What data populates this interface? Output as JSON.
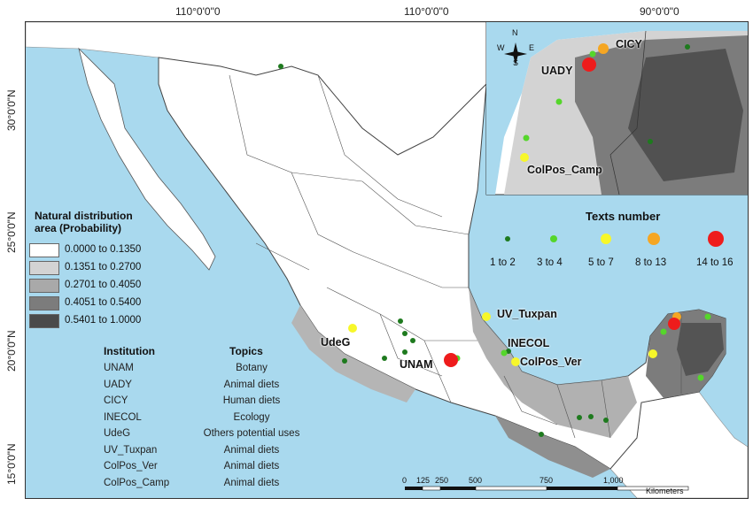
{
  "grid_labels": {
    "top": [
      "110°0'0\"0",
      "110°0'0\"0",
      "90°0'0\"0"
    ],
    "left": [
      "30°0'0\"N",
      "25°0'0\"N",
      "20°0'0\"N",
      "15°0'0\"N"
    ]
  },
  "legend": {
    "title_line1": "Natural distribution",
    "title_line2": "area (Probability)",
    "classes": [
      {
        "label": "0.0000 to 0.1350",
        "color": "#ffffff"
      },
      {
        "label": "0.1351 to 0.2700",
        "color": "#d3d3d3"
      },
      {
        "label": "0.2701 to 0.4050",
        "color": "#a9a9a9"
      },
      {
        "label": "0.4051 to 0.5400",
        "color": "#7c7c7c"
      },
      {
        "label": "0.5401 to 1.0000",
        "color": "#4a4a4a"
      }
    ]
  },
  "institution_table": {
    "header_institution": "Institution",
    "header_topics": "Topics",
    "rows": [
      {
        "institution": "UNAM",
        "topic": "Botany"
      },
      {
        "institution": "UADY",
        "topic": "Animal diets"
      },
      {
        "institution": "CICY",
        "topic": "Human diets"
      },
      {
        "institution": "INECOL",
        "topic": "Ecology"
      },
      {
        "institution": "UdeG",
        "topic": "Others potential uses"
      },
      {
        "institution": "UV_Tuxpan",
        "topic": "Animal diets"
      },
      {
        "institution": "ColPos_Ver",
        "topic": "Animal diets"
      },
      {
        "institution": "ColPos_Camp",
        "topic": "Animal diets"
      }
    ]
  },
  "texts_number": {
    "title": "Texts number",
    "classes": [
      {
        "label": "1 to 2",
        "color": "#1e7a1e"
      },
      {
        "label": "3 to 4",
        "color": "#55d62b"
      },
      {
        "label": "5 to 7",
        "color": "#f7f72a"
      },
      {
        "label": "8 to 13",
        "color": "#f5a623"
      },
      {
        "label": "14 to 16",
        "color": "#ee1c1c"
      }
    ]
  },
  "map_labels": {
    "unam": "UNAM",
    "udeg": "UdeG",
    "uv_tuxpan": "UV_Tuxpan",
    "inecol": "INECOL",
    "colpos_ver": "ColPos_Ver"
  },
  "inset": {
    "labels": {
      "uady": "UADY",
      "cicy": "CICY",
      "colpos_camp": "ColPos_Camp"
    },
    "compass": {
      "n": "N",
      "s": "S",
      "e": "E",
      "w": "W"
    }
  },
  "scale_bar": {
    "ticks": [
      "0",
      "125",
      "250",
      "500",
      "750",
      "1,000"
    ],
    "unit": "Kilometers"
  }
}
